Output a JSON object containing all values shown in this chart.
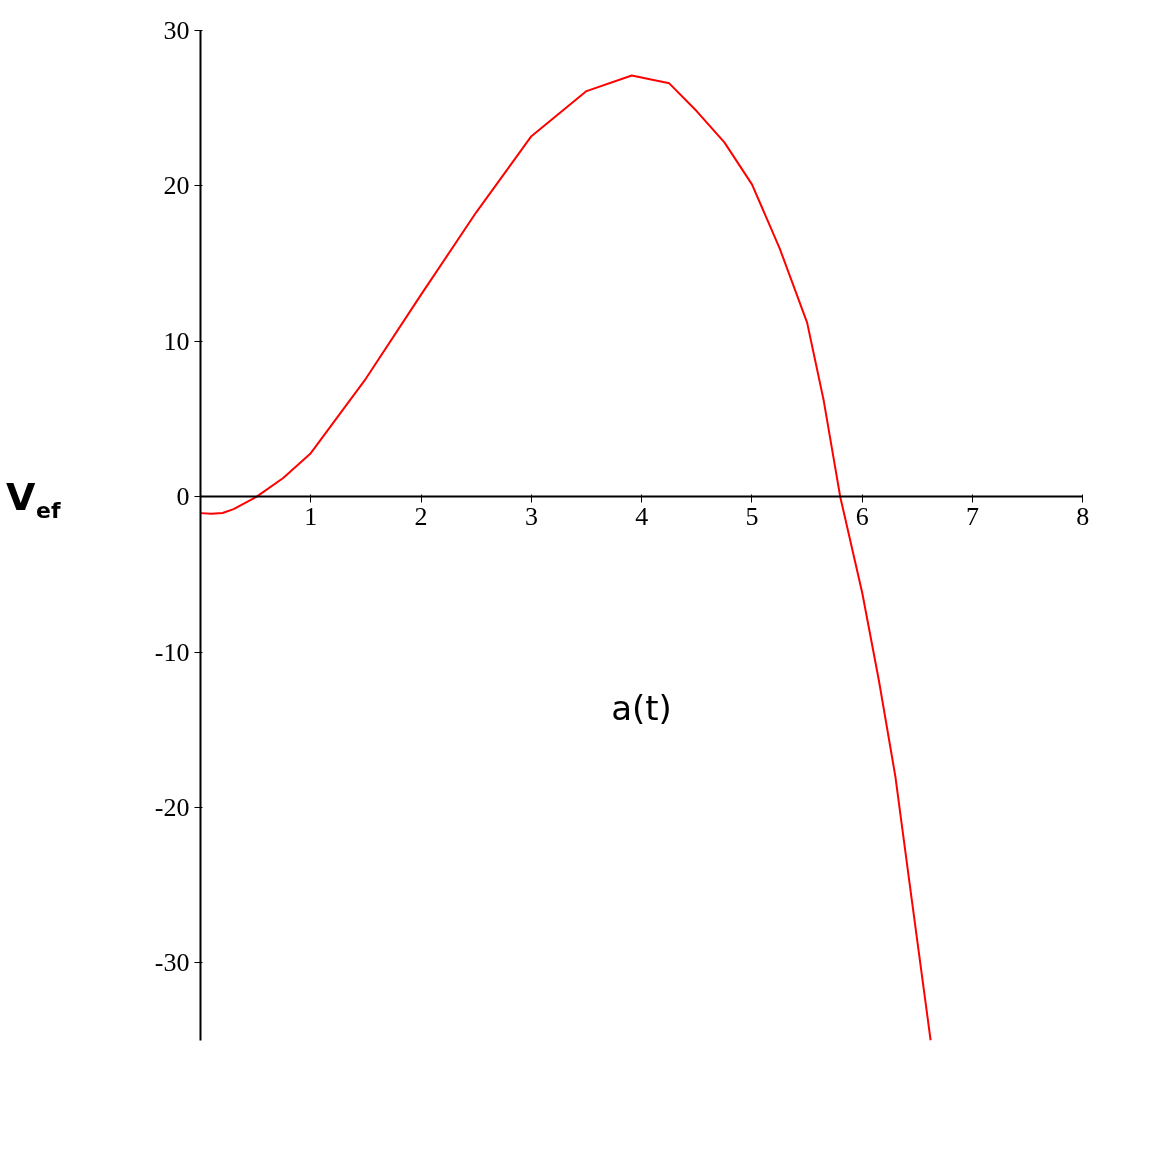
{
  "chart_data": {
    "type": "line",
    "xlabel": "a(t)",
    "ylabel": "V$_{ef}$",
    "x": [
      0,
      0.1,
      0.2,
      0.3,
      0.51,
      0.75,
      1,
      1.5,
      2,
      2.5,
      3,
      3.5,
      3.91,
      4.25,
      4.5,
      4.75,
      5,
      5.25,
      5.5,
      5.65,
      5.8,
      6,
      6.15,
      6.3,
      6.45,
      6.62
    ],
    "series": [
      {
        "color": "#ff0000",
        "values": [
          -1.06,
          -1.1,
          -1.05,
          -0.8,
          0,
          1.2,
          2.8,
          7.6,
          13,
          18.3,
          23.2,
          26.1,
          27.1,
          26.6,
          24.8,
          22.8,
          20.1,
          16,
          11.2,
          6.2,
          0,
          -6.2,
          -11.8,
          -18,
          -26,
          -35
        ]
      }
    ],
    "xlim": [
      0,
      8
    ],
    "ylim": [
      -35,
      30
    ],
    "xticks": [
      1,
      2,
      3,
      4,
      5,
      6,
      7,
      8
    ],
    "yticks": [
      -30,
      -20,
      -10,
      0,
      10,
      20,
      30
    ],
    "grid": false
  }
}
